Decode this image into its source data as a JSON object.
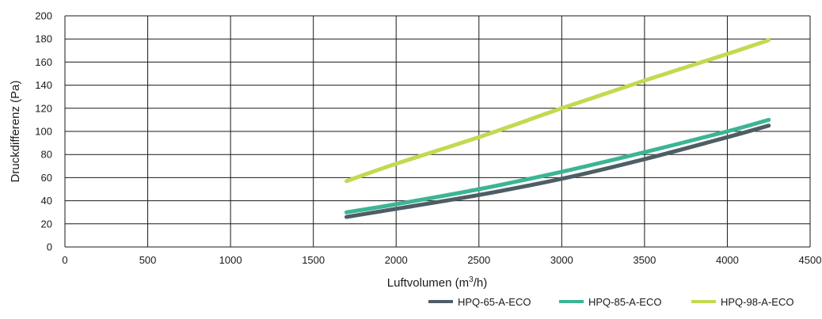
{
  "chart_data": {
    "type": "line",
    "xlabel_parts": [
      "Luftvolumen (m",
      "3",
      "/h)"
    ],
    "ylabel": "Druckdifferenz (Pa)",
    "xlim": [
      0,
      4500
    ],
    "ylim": [
      0,
      200
    ],
    "x_ticks": [
      0,
      500,
      1000,
      1500,
      2000,
      2500,
      3000,
      3500,
      4000,
      4500
    ],
    "y_ticks": [
      0,
      20,
      40,
      60,
      80,
      100,
      120,
      140,
      160,
      180,
      200
    ],
    "grid": true,
    "legend_position": "bottom-right",
    "series": [
      {
        "name": "HPQ-65-A-ECO",
        "color": "#4f5d66",
        "points": [
          [
            1700,
            26
          ],
          [
            2000,
            33
          ],
          [
            2500,
            45
          ],
          [
            3000,
            59
          ],
          [
            3500,
            76
          ],
          [
            4000,
            95
          ],
          [
            4250,
            105
          ]
        ]
      },
      {
        "name": "HPQ-85-A-ECO",
        "color": "#3cb594",
        "points": [
          [
            1700,
            30
          ],
          [
            2000,
            37
          ],
          [
            2500,
            50
          ],
          [
            3000,
            65
          ],
          [
            3500,
            82
          ],
          [
            4000,
            100
          ],
          [
            4250,
            110
          ]
        ]
      },
      {
        "name": "HPQ-98-A-ECO",
        "color": "#c5d850",
        "points": [
          [
            1700,
            57
          ],
          [
            2000,
            72
          ],
          [
            2500,
            95
          ],
          [
            3000,
            120
          ],
          [
            3500,
            144
          ],
          [
            4000,
            167
          ],
          [
            4250,
            179
          ]
        ]
      }
    ]
  }
}
